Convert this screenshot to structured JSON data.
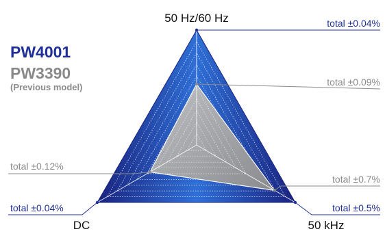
{
  "colors": {
    "new_model": "#1f2f9a",
    "previous_model": "#8a8a8a",
    "triangle_dark": "#1a237e",
    "triangle_light": "#2f6fd6",
    "grey_fill": "#a8a8a8"
  },
  "legend": {
    "new_model": "PW4001",
    "previous_model": "PW3390",
    "previous_model_note": "(Previous model)"
  },
  "chart_data": {
    "type": "radar",
    "axes": [
      "50 Hz/60 Hz",
      "DC",
      "50 kHz"
    ],
    "series": [
      {
        "name": "PW4001",
        "values": [
          1.0,
          1.0,
          1.0
        ],
        "labels": [
          "total ±0.04%",
          "total ±0.04%",
          "total ±0.5%"
        ]
      },
      {
        "name": "PW3390",
        "values": [
          0.53,
          0.47,
          0.79
        ],
        "labels": [
          "total ±0.09%",
          "total ±0.12%",
          "total ±0.7%"
        ]
      }
    ],
    "rings": 10
  }
}
